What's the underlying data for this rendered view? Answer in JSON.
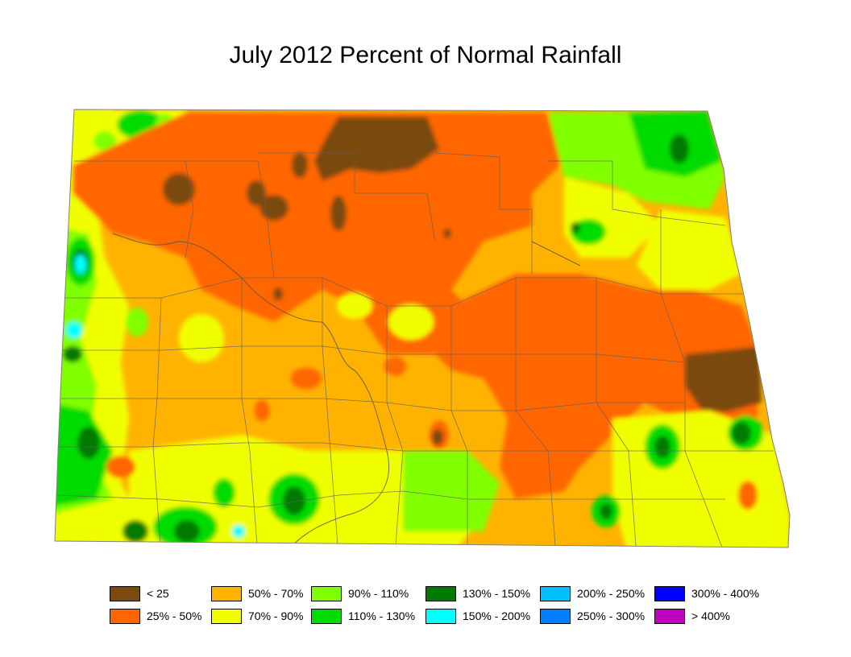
{
  "title": "July 2012 Percent of Normal Rainfall",
  "legend": [
    {
      "label": "< 25",
      "color": "#7a4a10"
    },
    {
      "label": "25% - 50%",
      "color": "#ff6600"
    },
    {
      "label": "50% - 70%",
      "color": "#ffb300"
    },
    {
      "label": "70% - 90%",
      "color": "#f0ff00"
    },
    {
      "label": "90% - 110%",
      "color": "#80ff00"
    },
    {
      "label": "110% - 130%",
      "color": "#00dc00"
    },
    {
      "label": "130% - 150%",
      "color": "#007a00"
    },
    {
      "label": "150% - 200%",
      "color": "#00ffff"
    },
    {
      "label": "200% - 250%",
      "color": "#00c0ff"
    },
    {
      "label": "250% - 300%",
      "color": "#0080ff"
    },
    {
      "label": "300% - 400%",
      "color": "#0000ff"
    },
    {
      "label": "> 400%",
      "color": "#c000c0"
    }
  ]
}
